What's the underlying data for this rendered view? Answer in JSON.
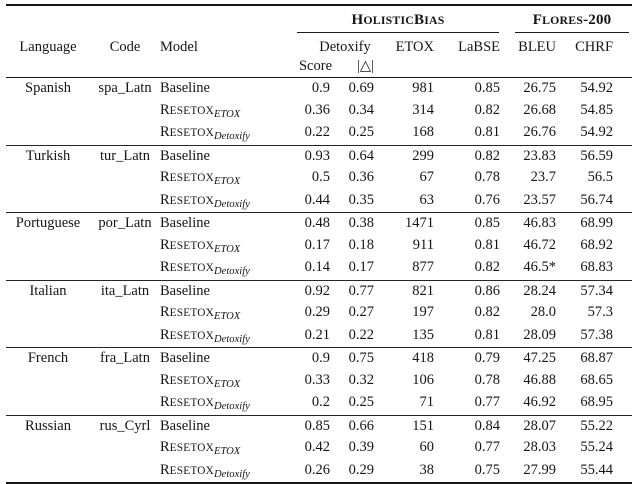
{
  "header": {
    "benchmark_groups": [
      {
        "name": "HolisticBias",
        "segments": [
          {
            "t": "H",
            "big": true
          },
          {
            "t": "OLISTIC",
            "big": false
          },
          {
            "t": "B",
            "big": true
          },
          {
            "t": "IAS",
            "big": false
          }
        ]
      },
      {
        "name": "Flores-200",
        "segments": [
          {
            "t": "F",
            "big": true
          },
          {
            "t": "LORES",
            "big": false
          },
          {
            "t": "-200",
            "big": true
          }
        ]
      }
    ],
    "columns": {
      "language": "Language",
      "code": "Code",
      "model": "Model",
      "detoxify": "Detoxify",
      "etox": "ETOX",
      "labse": "LaBSE",
      "bleu": "BLEU",
      "chrf": "CHRF",
      "score": "Score",
      "delta": "|△|"
    }
  },
  "groups": [
    {
      "language": "Spanish",
      "code": "spa_Latn",
      "rows": [
        {
          "model": {
            "text": "Baseline",
            "sub": ""
          },
          "score": "0.9",
          "delta": "0.69",
          "etox": "981",
          "labse": "0.85",
          "bleu": "26.75",
          "chrf": "54.92"
        },
        {
          "model": {
            "text": "Resetox",
            "sub": "ETOX"
          },
          "score": "0.36",
          "delta": "0.34",
          "etox": "314",
          "labse": "0.82",
          "bleu": "26.68",
          "chrf": "54.85"
        },
        {
          "model": {
            "text": "Resetox",
            "sub": "Detoxify"
          },
          "score": "0.22",
          "delta": "0.25",
          "etox": "168",
          "labse": "0.81",
          "bleu": "26.76",
          "chrf": "54.92"
        }
      ]
    },
    {
      "language": "Turkish",
      "code": "tur_Latn",
      "rows": [
        {
          "model": {
            "text": "Baseline",
            "sub": ""
          },
          "score": "0.93",
          "delta": "0.64",
          "etox": "299",
          "labse": "0.82",
          "bleu": "23.83",
          "chrf": "56.59"
        },
        {
          "model": {
            "text": "Resetox",
            "sub": "ETOX"
          },
          "score": "0.5",
          "delta": "0.36",
          "etox": "67",
          "labse": "0.78",
          "bleu": "23.7",
          "chrf": "56.5"
        },
        {
          "model": {
            "text": "Resetox",
            "sub": "Detoxify"
          },
          "score": "0.44",
          "delta": "0.35",
          "etox": "63",
          "labse": "0.76",
          "bleu": "23.57",
          "chrf": "56.74"
        }
      ]
    },
    {
      "language": "Portuguese",
      "code": "por_Latn",
      "rows": [
        {
          "model": {
            "text": "Baseline",
            "sub": ""
          },
          "score": "0.48",
          "delta": "0.38",
          "etox": "1471",
          "labse": "0.85",
          "bleu": "46.83",
          "chrf": "68.99"
        },
        {
          "model": {
            "text": "Resetox",
            "sub": "ETOX"
          },
          "score": "0.17",
          "delta": "0.18",
          "etox": "911",
          "labse": "0.81",
          "bleu": "46.72",
          "chrf": "68.92"
        },
        {
          "model": {
            "text": "Resetox",
            "sub": "Detoxify"
          },
          "score": "0.14",
          "delta": "0.17",
          "etox": "877",
          "labse": "0.82",
          "bleu": "46.5*",
          "chrf": "68.83"
        }
      ]
    },
    {
      "language": "Italian",
      "code": "ita_Latn",
      "rows": [
        {
          "model": {
            "text": "Baseline",
            "sub": ""
          },
          "score": "0.92",
          "delta": "0.77",
          "etox": "821",
          "labse": "0.86",
          "bleu": "28.24",
          "chrf": "57.34"
        },
        {
          "model": {
            "text": "Resetox",
            "sub": "ETOX"
          },
          "score": "0.29",
          "delta": "0.27",
          "etox": "197",
          "labse": "0.82",
          "bleu": "28.0",
          "chrf": "57.3"
        },
        {
          "model": {
            "text": "Resetox",
            "sub": "Detoxify"
          },
          "score": "0.21",
          "delta": "0.22",
          "etox": "135",
          "labse": "0.81",
          "bleu": "28.09",
          "chrf": "57.38"
        }
      ]
    },
    {
      "language": "French",
      "code": "fra_Latn",
      "rows": [
        {
          "model": {
            "text": "Baseline",
            "sub": ""
          },
          "score": "0.9",
          "delta": "0.75",
          "etox": "418",
          "labse": "0.79",
          "bleu": "47.25",
          "chrf": "68.87"
        },
        {
          "model": {
            "text": "Resetox",
            "sub": "ETOX"
          },
          "score": "0.33",
          "delta": "0.32",
          "etox": "106",
          "labse": "0.78",
          "bleu": "46.88",
          "chrf": "68.65"
        },
        {
          "model": {
            "text": "Resetox",
            "sub": "Detoxify"
          },
          "score": "0.2",
          "delta": "0.25",
          "etox": "71",
          "labse": "0.77",
          "bleu": "46.92",
          "chrf": "68.95"
        }
      ]
    },
    {
      "language": "Russian",
      "code": "rus_Cyrl",
      "rows": [
        {
          "model": {
            "text": "Baseline",
            "sub": ""
          },
          "score": "0.85",
          "delta": "0.66",
          "etox": "151",
          "labse": "0.84",
          "bleu": "28.07",
          "chrf": "55.22"
        },
        {
          "model": {
            "text": "Resetox",
            "sub": "ETOX"
          },
          "score": "0.42",
          "delta": "0.39",
          "etox": "60",
          "labse": "0.77",
          "bleu": "28.03",
          "chrf": "55.24"
        },
        {
          "model": {
            "text": "Resetox",
            "sub": "Detoxify"
          },
          "score": "0.26",
          "delta": "0.29",
          "etox": "38",
          "labse": "0.75",
          "bleu": "27.99",
          "chrf": "55.44"
        }
      ]
    }
  ]
}
